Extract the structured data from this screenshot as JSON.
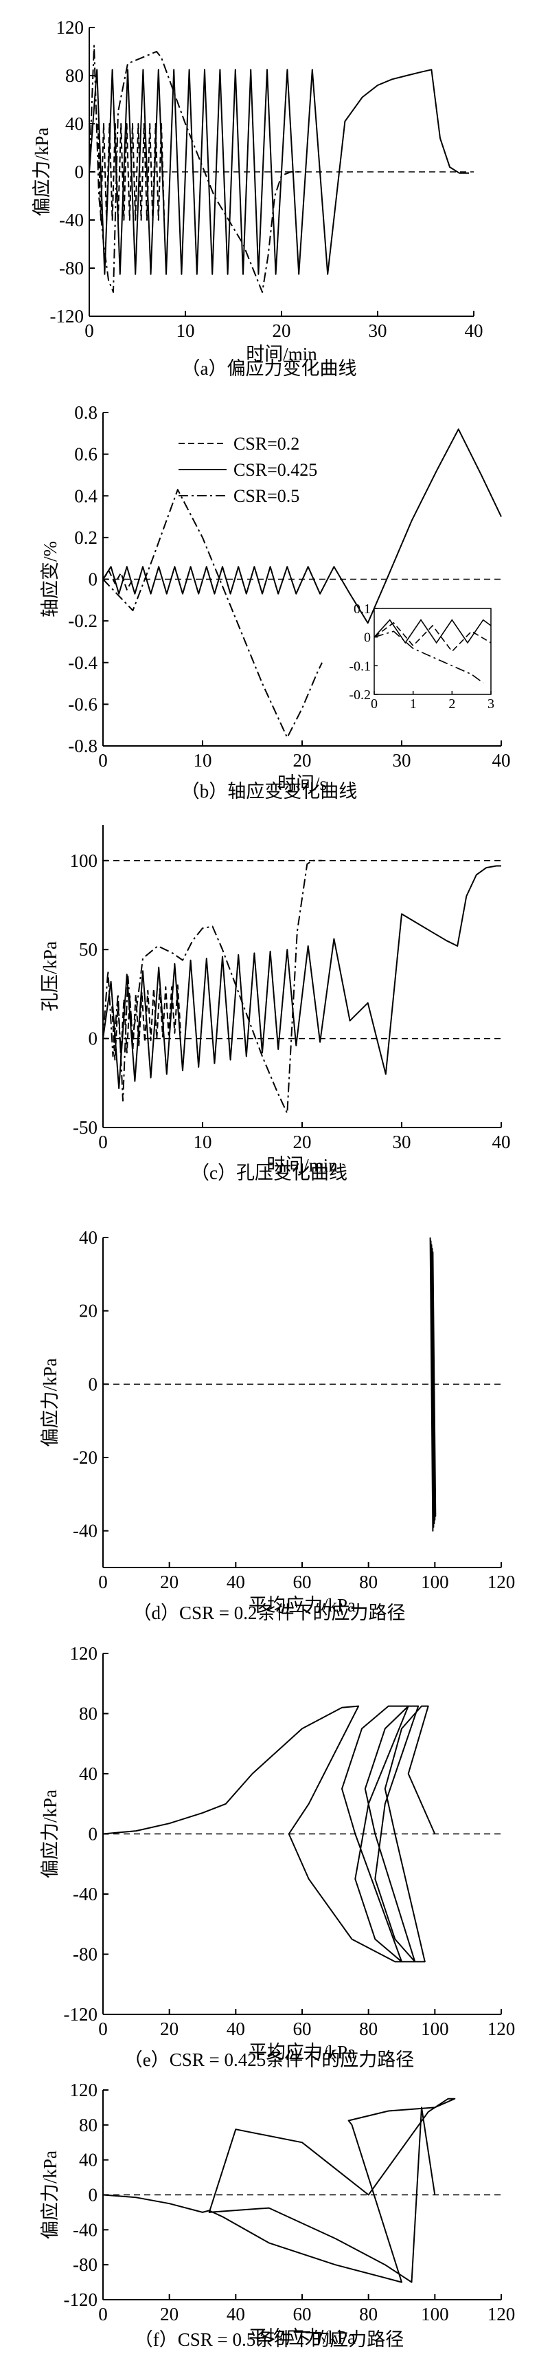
{
  "chart_data": [
    {
      "type": "line",
      "caption": "（a）偏应力变化曲线",
      "xlabel": "时间/min",
      "ylabel": "偏应力/kPa",
      "xlim": [
        0,
        40
      ],
      "ylim": [
        -120,
        120
      ],
      "xticks": [
        0,
        10,
        20,
        30,
        40
      ],
      "yticks": [
        -120,
        -80,
        -40,
        0,
        40,
        80,
        120
      ],
      "reference_line": 0,
      "series": [
        {
          "style": "dashed",
          "x": [
            0.9,
            1.2,
            1.5,
            1.8,
            2.1,
            2.4,
            2.7,
            3.0,
            3.3,
            3.6,
            3.9,
            4.2,
            4.5,
            4.8,
            5.1,
            5.4,
            5.7,
            6.0,
            6.3,
            6.6,
            6.9,
            7.2,
            7.5,
            7.8
          ],
          "y": [
            40,
            -40,
            40,
            -40,
            40,
            -40,
            40,
            -40,
            40,
            -40,
            40,
            -40,
            40,
            -40,
            40,
            -40,
            40,
            -40,
            40,
            -40,
            40,
            -40,
            40,
            -40
          ]
        },
        {
          "style": "solid",
          "x": [
            0,
            0.8,
            1.6,
            2.4,
            3.2,
            4.0,
            4.8,
            5.6,
            6.4,
            7.2,
            8.0,
            8.8,
            9.6,
            10.4,
            11.2,
            12.0,
            12.8,
            13.6,
            14.4,
            15.2,
            16.0,
            16.8,
            17.6,
            18.5,
            19.4,
            20.6,
            21.8,
            23.2,
            24.8,
            26.6,
            28.4,
            30.0,
            31.5,
            33.0,
            34.5,
            35.6,
            36.5,
            37.5,
            38.5,
            39.5
          ],
          "y": [
            0,
            85,
            -85,
            85,
            -85,
            85,
            -85,
            85,
            -85,
            85,
            -85,
            85,
            -85,
            85,
            -85,
            85,
            -85,
            85,
            -85,
            85,
            -85,
            85,
            -85,
            85,
            -85,
            85,
            -85,
            85,
            -85,
            42,
            62,
            72,
            77,
            80,
            83,
            85,
            28,
            4,
            -1,
            -1
          ]
        },
        {
          "style": "dashdot",
          "x": [
            0,
            0.5,
            1.0,
            1.5,
            2.0,
            2.5,
            3.0,
            4.0,
            5.5,
            7.0,
            7.5,
            10.0,
            13.0,
            16.0,
            17.5,
            18.0,
            18.6,
            19.3,
            20.0,
            21.0,
            22.0
          ],
          "y": [
            0,
            105,
            -20,
            -60,
            -90,
            -100,
            50,
            90,
            95,
            100,
            95,
            40,
            -20,
            -60,
            -90,
            -100,
            -70,
            -20,
            -3,
            0,
            0
          ]
        }
      ]
    },
    {
      "type": "line",
      "caption": "（b）轴应变变化曲线",
      "xlabel": "时间/s",
      "ylabel": "轴应变/%",
      "xlim": [
        0,
        40
      ],
      "ylim": [
        -0.8,
        0.8
      ],
      "xticks": [
        0,
        10,
        20,
        30,
        40
      ],
      "yticks": [
        -0.8,
        -0.6,
        -0.4,
        -0.2,
        0,
        0.2,
        0.4,
        0.6,
        0.8
      ],
      "reference_line": 0,
      "legend": [
        "CSR=0.2",
        "CSR=0.425",
        "CSR=0.5"
      ],
      "series": [
        {
          "name": "CSR=0.2",
          "style": "dashed",
          "x": [
            0,
            0.6,
            1.2,
            1.8,
            2.4,
            3.0
          ],
          "y": [
            0,
            0.04,
            -0.02,
            0.03,
            -0.05,
            0.0
          ]
        },
        {
          "name": "CSR=0.425",
          "style": "solid",
          "x": [
            0,
            0.8,
            1.6,
            2.4,
            3.2,
            4.0,
            4.8,
            5.6,
            6.4,
            7.2,
            8.0,
            8.8,
            9.6,
            10.4,
            11.2,
            12.0,
            12.8,
            13.6,
            14.4,
            15.2,
            16.0,
            16.8,
            17.6,
            18.5,
            19.4,
            20.6,
            21.8,
            23.2,
            24.8,
            26.6,
            28.5,
            31.0,
            33.5,
            35.7,
            38.0,
            40.0
          ],
          "y": [
            0,
            0.06,
            -0.07,
            0.06,
            -0.07,
            0.06,
            -0.07,
            0.06,
            -0.07,
            0.06,
            -0.07,
            0.06,
            -0.07,
            0.06,
            -0.07,
            0.06,
            -0.07,
            0.06,
            -0.07,
            0.06,
            -0.07,
            0.06,
            -0.07,
            0.06,
            -0.07,
            0.06,
            -0.07,
            0.06,
            -0.07,
            -0.21,
            0.0,
            0.28,
            0.52,
            0.72,
            0.5,
            0.3
          ]
        },
        {
          "name": "CSR=0.5",
          "style": "dashdot",
          "x": [
            0,
            1.0,
            2.0,
            3.0,
            5.0,
            7.5,
            10.0,
            13.0,
            16.0,
            18.5,
            20.0,
            21.5,
            22.0
          ],
          "y": [
            0,
            -0.05,
            -0.1,
            -0.15,
            0.1,
            0.43,
            0.2,
            -0.15,
            -0.5,
            -0.76,
            -0.62,
            -0.45,
            -0.4
          ]
        }
      ],
      "inset": {
        "xlim": [
          0,
          3
        ],
        "ylim": [
          -0.2,
          0.1
        ],
        "xticks": [
          0,
          1,
          2,
          3
        ],
        "yticks": [
          -0.2,
          -0.1,
          0,
          0.1
        ],
        "series": [
          {
            "style": "solid",
            "x": [
              0,
              0.4,
              0.8,
              1.2,
              1.6,
              2.0,
              2.4,
              2.8,
              3.0
            ],
            "y": [
              0,
              0.06,
              -0.02,
              0.06,
              -0.02,
              0.06,
              -0.02,
              0.06,
              0.04
            ]
          },
          {
            "style": "dashed",
            "x": [
              0,
              0.5,
              1.0,
              1.5,
              2.0,
              2.5,
              3.0
            ],
            "y": [
              0,
              0.05,
              -0.03,
              0.04,
              -0.05,
              0.02,
              -0.02
            ]
          },
          {
            "style": "dashdot",
            "x": [
              0,
              0.5,
              1.0,
              1.5,
              2.0,
              2.5,
              2.8
            ],
            "y": [
              0,
              0.02,
              -0.04,
              -0.07,
              -0.1,
              -0.13,
              -0.16
            ]
          }
        ]
      }
    },
    {
      "type": "line",
      "caption": "（c）孔压变化曲线",
      "xlabel": "时间/min",
      "ylabel": "孔压/kPa",
      "xlim": [
        0,
        40
      ],
      "ylim": [
        -50,
        120
      ],
      "xticks": [
        0,
        10,
        20,
        30,
        40
      ],
      "yticks": [
        -50,
        0,
        50,
        100
      ],
      "reference_lines": [
        0,
        100
      ],
      "series": [
        {
          "style": "dashed",
          "x": [
            0.9,
            1.2,
            1.5,
            1.8,
            2.1,
            2.4,
            2.7,
            3.0,
            3.3,
            3.6,
            3.9,
            4.2,
            4.5,
            4.8,
            5.1,
            5.4,
            5.7,
            6.0,
            6.3,
            6.6,
            6.9,
            7.2,
            7.5,
            7.8
          ],
          "y": [
            18,
            -12,
            20,
            -10,
            22,
            -8,
            24,
            -6,
            25,
            -4,
            26,
            -2,
            27,
            -1,
            28,
            0,
            28,
            1,
            29,
            2,
            29,
            3,
            30,
            3
          ]
        },
        {
          "style": "solid",
          "x": [
            0,
            0.8,
            1.6,
            2.4,
            3.2,
            4.0,
            4.8,
            5.6,
            6.4,
            7.2,
            8.0,
            8.8,
            9.6,
            10.4,
            11.2,
            12.0,
            12.8,
            13.6,
            14.4,
            15.2,
            16.0,
            16.8,
            17.6,
            18.5,
            19.4,
            20.6,
            21.8,
            23.2,
            24.8,
            26.6,
            28.4,
            30.0,
            31.5,
            33.0,
            34.5,
            35.6,
            36.5,
            37.5,
            38.5,
            39.5,
            40.0
          ],
          "y": [
            0,
            32,
            -28,
            36,
            -24,
            38,
            -22,
            40,
            -20,
            42,
            -18,
            44,
            -16,
            45,
            -14,
            46,
            -12,
            47,
            -10,
            48,
            -8,
            49,
            -6,
            50,
            -4,
            52,
            -2,
            56,
            10,
            20,
            -20,
            70,
            65,
            60,
            55,
            52,
            80,
            92,
            96,
            97,
            97
          ]
        },
        {
          "style": "dashdot",
          "x": [
            0,
            0.5,
            1.0,
            1.5,
            2.0,
            2.5,
            3.0,
            4.0,
            5.5,
            7.0,
            8.0,
            9.0,
            10.0,
            11.0,
            12.0,
            14.0,
            16.0,
            17.5,
            18.5,
            19.5,
            20.5,
            21.0,
            22.0
          ],
          "y": [
            0,
            38,
            -10,
            25,
            -35,
            35,
            0,
            45,
            52,
            48,
            44,
            55,
            62,
            63,
            50,
            20,
            -10,
            -30,
            -42,
            60,
            98,
            100,
            100
          ]
        }
      ]
    },
    {
      "type": "line",
      "caption": "（d）CSR = 0.2条件下的应力路径",
      "xlabel": "平均应力/kPa",
      "ylabel": "偏应力/kPa",
      "xlim": [
        0,
        120
      ],
      "ylim": [
        -50,
        40
      ],
      "xticks": [
        0,
        20,
        40,
        60,
        80,
        100,
        120
      ],
      "yticks": [
        -40,
        -20,
        0,
        20,
        40
      ],
      "reference_line": 0,
      "series": [
        {
          "style": "solid",
          "x": [
            98.6,
            99.4,
            98.8,
            99.6,
            99.0,
            99.8,
            99.2,
            100.0,
            99.4,
            100.2,
            99.6
          ],
          "y": [
            40,
            -40,
            39,
            -39,
            38,
            -38,
            37,
            -37,
            36,
            -36,
            0
          ]
        }
      ]
    },
    {
      "type": "line",
      "caption": "（e）CSR = 0.425条件下的应力路径",
      "xlabel": "平均应力/kPa",
      "ylabel": "偏应力/kPa",
      "xlim": [
        0,
        120
      ],
      "ylim": [
        -120,
        120
      ],
      "xticks": [
        0,
        20,
        40,
        60,
        80,
        100,
        120
      ],
      "yticks": [
        -120,
        -80,
        -40,
        0,
        40,
        80,
        120
      ],
      "reference_line": 0,
      "series": [
        {
          "style": "solid",
          "x": [
            0,
            10,
            20,
            30,
            37,
            45,
            60,
            72,
            77,
            62,
            56,
            62,
            75,
            88,
            90,
            76,
            72,
            78,
            86,
            92,
            80,
            76,
            82,
            90,
            94,
            82,
            79,
            85,
            92,
            95,
            85,
            82,
            88,
            94,
            97,
            88,
            85,
            90,
            96,
            98,
            92,
            100
          ],
          "y": [
            0,
            2,
            7,
            14,
            20,
            40,
            70,
            84,
            85,
            20,
            0,
            -30,
            -70,
            -85,
            -85,
            0,
            30,
            70,
            85,
            85,
            20,
            -30,
            -70,
            -85,
            -85,
            0,
            30,
            70,
            85,
            85,
            20,
            -30,
            -70,
            -85,
            -85,
            0,
            30,
            70,
            85,
            85,
            40,
            0
          ]
        }
      ]
    },
    {
      "type": "line",
      "caption": "（f）CSR = 0.5条件下的应力路径",
      "xlabel": "平均应力/kPa",
      "ylabel": "偏应力/kPa",
      "xlim": [
        0,
        120
      ],
      "ylim": [
        -120,
        120
      ],
      "xticks": [
        0,
        20,
        40,
        60,
        80,
        100,
        120
      ],
      "yticks": [
        -120,
        -80,
        -40,
        0,
        40,
        80,
        120
      ],
      "reference_line": 0,
      "series": [
        {
          "style": "solid",
          "x": [
            0,
            10,
            20,
            30,
            32,
            36,
            50,
            70,
            85,
            90,
            75,
            74,
            86,
            100,
            106,
            104,
            98,
            80,
            60,
            40,
            32,
            50,
            70,
            85,
            93,
            96,
            100
          ],
          "y": [
            0,
            -3,
            -10,
            -20,
            -18,
            -25,
            -55,
            -80,
            -95,
            -100,
            80,
            85,
            96,
            100,
            110,
            110,
            95,
            0,
            60,
            75,
            -20,
            -15,
            -50,
            -80,
            -100,
            100,
            0
          ]
        }
      ]
    }
  ]
}
